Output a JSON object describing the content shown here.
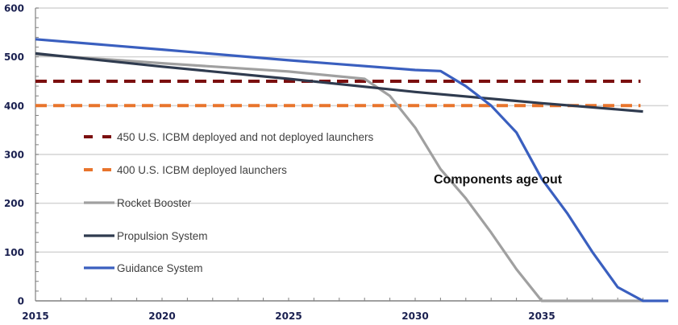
{
  "chart_data": {
    "type": "line",
    "title": "",
    "xlabel": "",
    "ylabel": "",
    "xlim": [
      2015,
      2040
    ],
    "ylim": [
      0,
      600
    ],
    "x_ticks": [
      2015,
      2020,
      2025,
      2030,
      2035
    ],
    "x_tick_labels": [
      "2015",
      "2020",
      "2025",
      "2030",
      "2035"
    ],
    "y_ticks": [
      0,
      100,
      200,
      300,
      400,
      500,
      600
    ],
    "y_tick_labels": [
      "0",
      "100",
      "200",
      "300",
      "400",
      "500",
      "600"
    ],
    "grid": true,
    "legend_position": "left-middle",
    "annotation": "Components age out",
    "series": [
      {
        "name": "450 U.S. ICBM deployed and not deployed launchers",
        "style": "dashed",
        "color": "#7b0f0f",
        "x": [
          2015,
          2040
        ],
        "y": [
          450,
          450
        ]
      },
      {
        "name": "400 U.S. ICBM deployed launchers",
        "style": "dashed",
        "color": "#e8742c",
        "x": [
          2015,
          2040
        ],
        "y": [
          400,
          400
        ]
      },
      {
        "name": "Rocket Booster",
        "style": "solid",
        "color": "#a0a0a0",
        "x": [
          2015,
          2020,
          2025,
          2028,
          2029,
          2030,
          2031,
          2032,
          2033,
          2034,
          2035,
          2036,
          2037,
          2038,
          2039
        ],
        "y": [
          505,
          487,
          470,
          455,
          420,
          355,
          270,
          210,
          140,
          65,
          0,
          0,
          0,
          0,
          0
        ]
      },
      {
        "name": "Propulsion System",
        "style": "solid",
        "color": "#2f3b4f",
        "x": [
          2015,
          2020,
          2025,
          2030,
          2035,
          2039
        ],
        "y": [
          507,
          480,
          455,
          428,
          405,
          388
        ]
      },
      {
        "name": "Guidance System",
        "style": "solid",
        "color": "#3a5fbf",
        "x": [
          2015,
          2020,
          2025,
          2030,
          2031,
          2032,
          2033,
          2034,
          2035,
          2036,
          2037,
          2038,
          2039,
          2040
        ],
        "y": [
          536,
          515,
          493,
          473,
          471,
          440,
          400,
          345,
          250,
          180,
          100,
          28,
          0,
          0
        ]
      }
    ]
  }
}
